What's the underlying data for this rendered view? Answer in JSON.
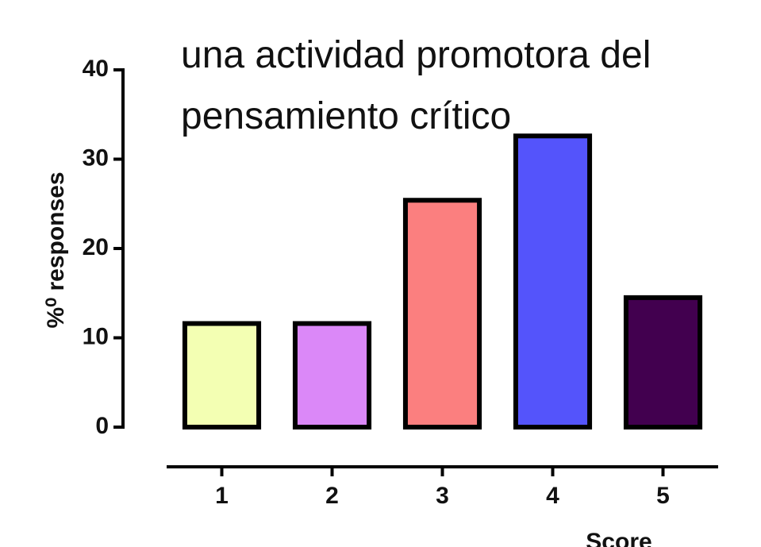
{
  "chart_data": {
    "type": "bar",
    "title": [
      "una actividad promotora del",
      "pensamiento crítico"
    ],
    "ylabel": "%⁰ responses",
    "xlabel": "Score",
    "categories": [
      "1",
      "2",
      "3",
      "4",
      "5"
    ],
    "values": [
      11.6,
      11.6,
      25.4,
      32.6,
      14.5
    ],
    "colors": [
      "#f3ffb3",
      "#db88f8",
      "#fb7f7f",
      "#5454fb",
      "#42004f"
    ],
    "ylim": [
      0,
      40
    ],
    "yticks": [
      0,
      10,
      20,
      30,
      40
    ],
    "grid": false
  }
}
